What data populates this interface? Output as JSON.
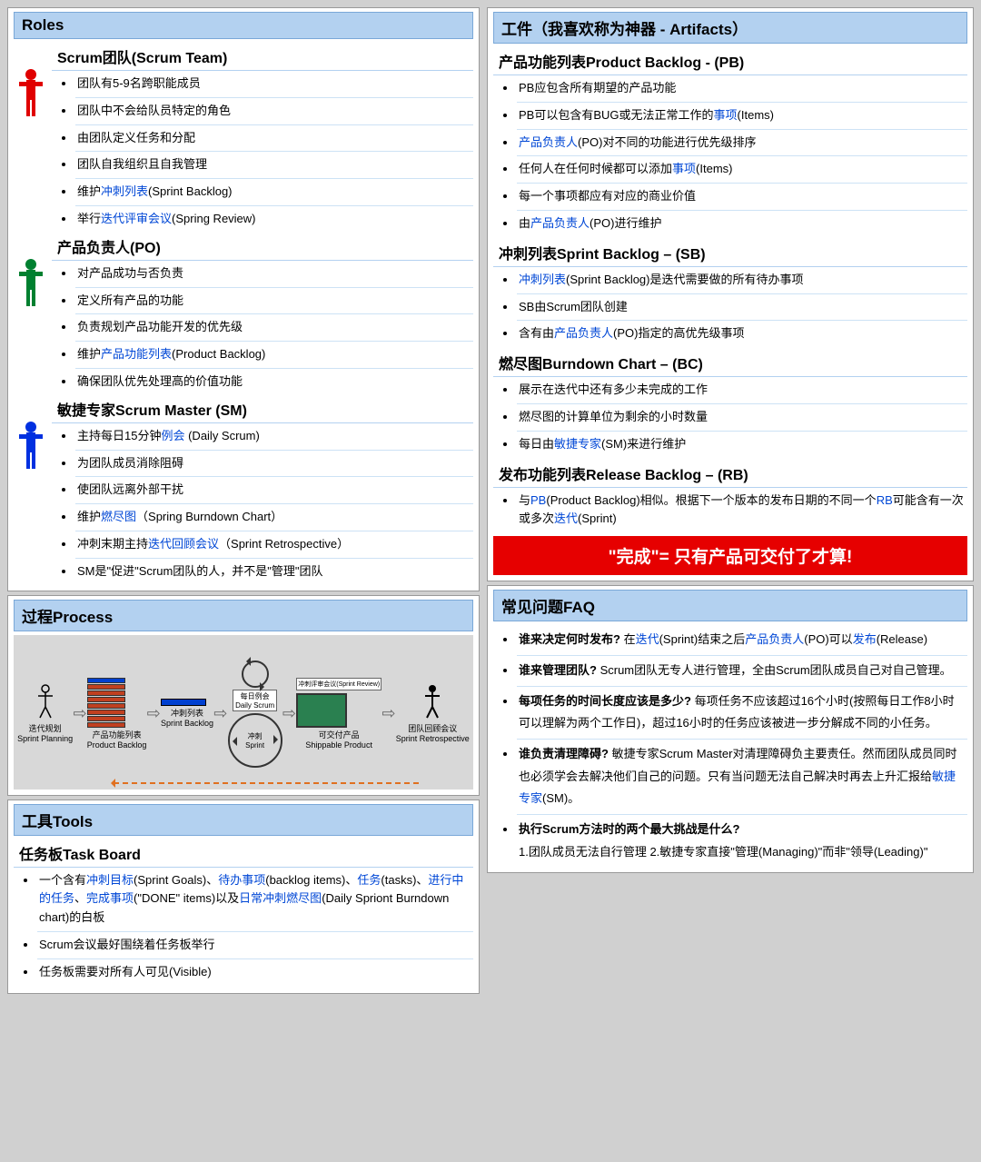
{
  "colors": {
    "heading_bg": "#b3d1f0",
    "heading_border": "#7aa8d8",
    "link": "#0047d6",
    "banner_bg": "#e60000",
    "role_red": "#e00000",
    "role_green": "#008030",
    "role_blue": "#0030e0",
    "pb_bar": "#c04020",
    "pb_top": "#0040d0",
    "ship": "#2a8050",
    "dashed": "#e07020"
  },
  "roles": {
    "title": "Roles",
    "team": {
      "title": "Scrum团队(Scrum Team)",
      "color": "#e00000",
      "items": [
        {
          "segs": [
            {
              "t": "团队有5-9名跨职能成员"
            }
          ]
        },
        {
          "segs": [
            {
              "t": "团队中不会给队员特定的角色"
            }
          ]
        },
        {
          "segs": [
            {
              "t": "由团队定义任务和分配"
            }
          ]
        },
        {
          "segs": [
            {
              "t": "团队自我组织且自我管理"
            }
          ]
        },
        {
          "segs": [
            {
              "t": "维护"
            },
            {
              "t": "冲刺列表",
              "l": 1
            },
            {
              "t": "(Sprint Backlog)"
            }
          ]
        },
        {
          "segs": [
            {
              "t": "举行"
            },
            {
              "t": "迭代评审会议",
              "l": 1
            },
            {
              "t": "(Spring Review)"
            }
          ]
        }
      ]
    },
    "po": {
      "title": "产品负责人(PO)",
      "color": "#008030",
      "items": [
        {
          "segs": [
            {
              "t": "对产品成功与否负责"
            }
          ]
        },
        {
          "segs": [
            {
              "t": "定义所有产品的功能"
            }
          ]
        },
        {
          "segs": [
            {
              "t": "负责规划产品功能开发的优先级"
            }
          ]
        },
        {
          "segs": [
            {
              "t": "维护"
            },
            {
              "t": "产品功能列表",
              "l": 1
            },
            {
              "t": "(Product Backlog)"
            }
          ]
        },
        {
          "segs": [
            {
              "t": "确保团队优先处理高的价值功能"
            }
          ]
        }
      ]
    },
    "sm": {
      "title": "敏捷专家Scrum Master (SM)",
      "color": "#0030e0",
      "items": [
        {
          "segs": [
            {
              "t": "主持每日15分钟"
            },
            {
              "t": "例会",
              "l": 1
            },
            {
              "t": " (Daily Scrum)"
            }
          ]
        },
        {
          "segs": [
            {
              "t": "为团队成员消除阻碍"
            }
          ]
        },
        {
          "segs": [
            {
              "t": "使团队远离外部干扰"
            }
          ]
        },
        {
          "segs": [
            {
              "t": "维护"
            },
            {
              "t": "燃尽图",
              "l": 1
            },
            {
              "t": "（Spring Burndown Chart）"
            }
          ]
        },
        {
          "segs": [
            {
              "t": "冲刺末期主持"
            },
            {
              "t": "迭代回顾会议",
              "l": 1
            },
            {
              "t": "（Sprint Retrospective）"
            }
          ]
        },
        {
          "segs": [
            {
              "t": "SM是\"促进\"Scrum团队的人，并不是\"管理\"团队"
            }
          ]
        }
      ]
    }
  },
  "artifacts": {
    "title": "工件（我喜欢称为神器 - Artifacts）",
    "pb": {
      "title": "产品功能列表Product Backlog - (PB)",
      "items": [
        {
          "segs": [
            {
              "t": "PB应包含所有期望的产品功能"
            }
          ]
        },
        {
          "segs": [
            {
              "t": "PB可以包含有BUG或无法正常工作的"
            },
            {
              "t": "事项",
              "l": 1
            },
            {
              "t": "(Items)"
            }
          ]
        },
        {
          "segs": [
            {
              "t": "产品负责人",
              "l": 1
            },
            {
              "t": "(PO)对不同的功能进行优先级排序"
            }
          ]
        },
        {
          "segs": [
            {
              "t": "任何人在任何时候都可以添加"
            },
            {
              "t": "事项",
              "l": 1
            },
            {
              "t": "(Items)"
            }
          ]
        },
        {
          "segs": [
            {
              "t": "每一个事项都应有对应的商业价值"
            }
          ]
        },
        {
          "segs": [
            {
              "t": "由"
            },
            {
              "t": "产品负责人",
              "l": 1
            },
            {
              "t": "(PO)进行维护"
            }
          ]
        }
      ]
    },
    "sb": {
      "title": "冲刺列表Sprint Backlog – (SB)",
      "items": [
        {
          "segs": [
            {
              "t": "冲刺列表",
              "l": 1
            },
            {
              "t": "(Sprint Backlog)是迭代需要做的所有待办事项"
            }
          ]
        },
        {
          "segs": [
            {
              "t": "SB由Scrum团队创建"
            }
          ]
        },
        {
          "segs": [
            {
              "t": "含有由"
            },
            {
              "t": "产品负责人",
              "l": 1
            },
            {
              "t": "(PO)指定的高优先级事项"
            }
          ]
        }
      ]
    },
    "bc": {
      "title": "燃尽图Burndown Chart – (BC)",
      "items": [
        {
          "segs": [
            {
              "t": "展示在迭代中还有多少未完成的工作"
            }
          ]
        },
        {
          "segs": [
            {
              "t": "燃尽图的计算单位为剩余的小时数量"
            }
          ]
        },
        {
          "segs": [
            {
              "t": "每日由"
            },
            {
              "t": "敏捷专家",
              "l": 1
            },
            {
              "t": "(SM)来进行维护"
            }
          ]
        }
      ]
    },
    "rb": {
      "title": "发布功能列表Release Backlog – (RB)",
      "items": [
        {
          "segs": [
            {
              "t": "与"
            },
            {
              "t": "PB",
              "l": 1
            },
            {
              "t": "(Product Backlog)相似。根据下一个版本的发布日期的不同一个"
            },
            {
              "t": "RB",
              "l": 1
            },
            {
              "t": "可能含有一次或多次"
            },
            {
              "t": "迭代",
              "l": 1
            },
            {
              "t": "(Sprint)"
            }
          ]
        }
      ]
    },
    "banner": "\"完成\"= 只有产品可交付了才算!"
  },
  "process": {
    "title": "过程Process",
    "labels": {
      "sp": "迭代规划\nSprint Planning",
      "pb": "产品功能列表\nProduct Backlog",
      "sb": "冲刺列表\nSprint Backlog",
      "ds": "每日例会\nDaily Scrum",
      "sprint": "冲刺\nSprint",
      "review": "冲刺评审会议(Sprint Review)",
      "ship": "可交付产品\nShippable Product",
      "retro": "团队回顾会议\nSprint Retrospective"
    }
  },
  "tools": {
    "title": "工具Tools",
    "tb": {
      "title": "任务板Task Board",
      "items": [
        {
          "segs": [
            {
              "t": "一个含有"
            },
            {
              "t": "冲刺目标",
              "l": 1
            },
            {
              "t": "(Sprint Goals)、"
            },
            {
              "t": "待办事项",
              "l": 1
            },
            {
              "t": "(backlog items)、"
            },
            {
              "t": "任务",
              "l": 1
            },
            {
              "t": "(tasks)、"
            },
            {
              "t": "进行中的任务",
              "l": 1
            },
            {
              "t": "、"
            },
            {
              "t": "完成事项",
              "l": 1
            },
            {
              "t": "(\"DONE\" items)以及"
            },
            {
              "t": "日常冲刺燃尽图",
              "l": 1
            },
            {
              "t": "(Daily Spriont Burndown chart)的白板"
            }
          ]
        },
        {
          "segs": [
            {
              "t": "Scrum会议最好围绕着任务板举行"
            }
          ]
        },
        {
          "segs": [
            {
              "t": "任务板需要对所有人可见(Visible)"
            }
          ]
        }
      ]
    }
  },
  "faq": {
    "title": "常见问题FAQ",
    "items": [
      {
        "segs": [
          {
            "t": "谁来决定何时发布? ",
            "b": 1
          },
          {
            "t": "在"
          },
          {
            "t": "迭代",
            "l": 1
          },
          {
            "t": "(Sprint)结束之后"
          },
          {
            "t": "产品负责人",
            "l": 1
          },
          {
            "t": "(PO)可以"
          },
          {
            "t": "发布",
            "l": 1
          },
          {
            "t": "(Release)"
          }
        ]
      },
      {
        "segs": [
          {
            "t": "谁来管理团队? ",
            "b": 1
          },
          {
            "t": "Scrum团队无专人进行管理，全由Scrum团队成员自己对自己管理。"
          }
        ]
      },
      {
        "segs": [
          {
            "t": "每项任务的时间长度应该是多少? ",
            "b": 1
          },
          {
            "t": "每项任务不应该超过16个小时(按照每日工作8小时可以理解为两个工作日)，超过16小时的任务应该被进一步分解成不同的小任务。"
          }
        ]
      },
      {
        "segs": [
          {
            "t": "谁负责清理障碍?   ",
            "b": 1
          },
          {
            "t": "敏捷专家Scrum Master对清理障碍负主要责任。然而团队成员同时也必须学会去解决他们自己的问题。只有当问题无法自己解决时再去上升汇报给"
          },
          {
            "t": "敏捷专家",
            "l": 1
          },
          {
            "t": "(SM)。"
          }
        ]
      },
      {
        "segs": [
          {
            "t": "执行Scrum方法时的两个最大挑战是什么?",
            "b": 1
          },
          {
            "t": "\n1.团队成员无法自行管理   2.敏捷专家直接\"管理(Managing)\"而非\"领导(Leading)\""
          }
        ]
      }
    ]
  }
}
